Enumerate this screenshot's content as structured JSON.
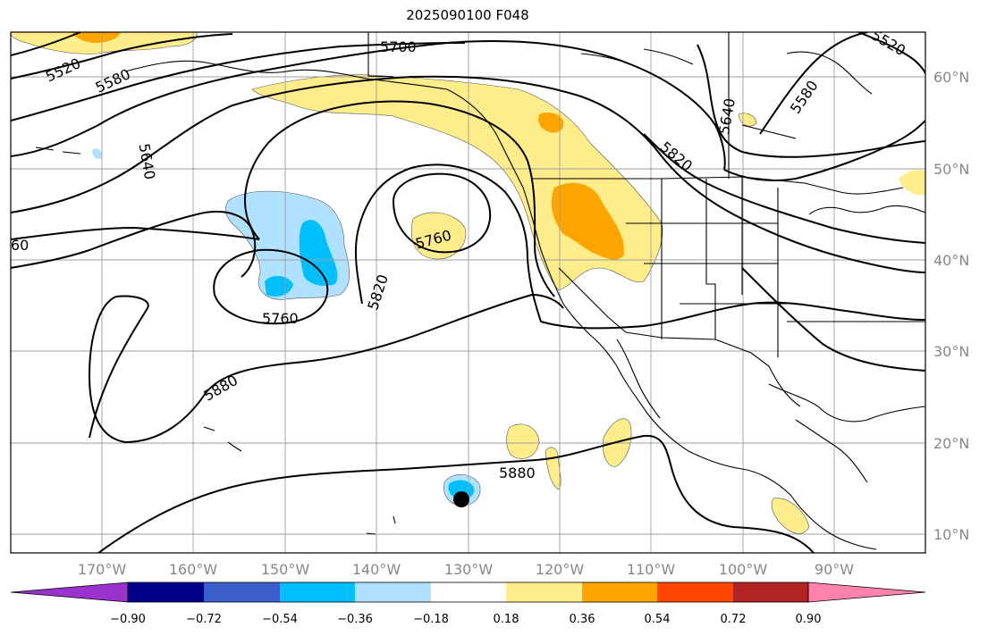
{
  "title": "2025090100 F048",
  "longitude_labels": [
    "170°W",
    "160°W",
    "150°W",
    "140°W",
    "130°W",
    "120°W",
    "110°W",
    "100°W",
    "90°W"
  ],
  "latitude_labels": [
    "60°N",
    "50°N",
    "40°N",
    "30°N",
    "20°N",
    "10°N"
  ],
  "contour_labels": [
    "5520",
    "5580",
    "5700",
    "5640",
    "5760",
    "5760",
    "5820",
    "5880",
    "5880",
    "5520",
    "5580",
    "5640",
    "5820",
    "60"
  ],
  "colorbar": {
    "tick_labels": [
      "−0.90",
      "−0.72",
      "−0.54",
      "−0.36",
      "−0.18",
      "0.18",
      "0.36",
      "0.54",
      "0.72",
      "0.90"
    ],
    "colors": [
      "#9a32cd",
      "#00008b",
      "#3a5fcd",
      "#00bfff",
      "#b0e2ff",
      "#ffffff",
      "#ffec8b",
      "#ffa500",
      "#ff4500",
      "#b22222",
      "#ff82ab"
    ]
  },
  "marker": "storm-center"
}
